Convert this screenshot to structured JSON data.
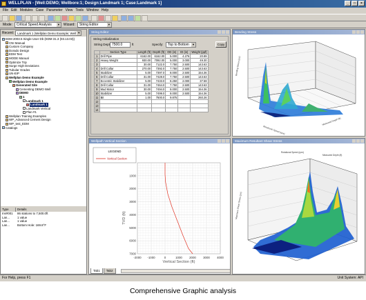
{
  "app": {
    "title": "WELLPLAN - [Well:DEMO; Wellbore:1; Design:Landmark 1; Case:Landmark 1]",
    "minimize": "_",
    "maximize": "□",
    "close": "×"
  },
  "menu": [
    "File",
    "Edit",
    "Modules",
    "Case",
    "Parameter",
    "View",
    "Tools",
    "Window",
    "Help"
  ],
  "modebar": {
    "mode_label": "Mode:",
    "mode_value": "Critical Speed Analysis",
    "wizard_label": "Wizard:",
    "wizard_value": "String Editor"
  },
  "left": {
    "recent_label": "Recent:",
    "recent_value": "Landmark 1 (Wellplan Demo Example; Well",
    "tree": [
      {
        "label": "EDM 2003.5 Single User Db (EDM 31.3 (03.13.03))",
        "level": 0,
        "icon": "db"
      },
      {
        "label": "CNI Manual",
        "level": 1,
        "icon": "co"
      },
      {
        "label": "Custom Company",
        "level": 1,
        "icon": "co"
      },
      {
        "label": "Dorado Design",
        "level": 1,
        "icon": "co"
      },
      {
        "label": "EDM Test",
        "level": 1,
        "icon": "co"
      },
      {
        "label": "MODE Manual",
        "level": 1,
        "icon": "co"
      },
      {
        "label": "Optimize Trip",
        "level": 1,
        "icon": "co"
      },
      {
        "label": "Surge High Deviations",
        "level": 1,
        "icon": "co"
      },
      {
        "label": "Tubular Grades",
        "level": 1,
        "icon": "co"
      },
      {
        "label": "UN-EIP",
        "level": 1,
        "icon": "co"
      },
      {
        "label": "Wellplan Demo Example",
        "level": 1,
        "icon": "co",
        "bold": true
      },
      {
        "label": "Wellplan Demo Example",
        "level": 2,
        "icon": "pr",
        "bold": true
      },
      {
        "label": "Generated Site",
        "level": 3,
        "icon": "si",
        "bold": true
      },
      {
        "label": "Cementing DEMO Well",
        "level": 4,
        "icon": "we"
      },
      {
        "label": "DEMO",
        "level": 4,
        "icon": "we",
        "bold": true
      },
      {
        "label": "1",
        "level": 5,
        "icon": "bo",
        "bold": true
      },
      {
        "label": "Landmark 1",
        "level": 6,
        "icon": "de",
        "bold": true
      },
      {
        "label": "Landmark 1",
        "level": 7,
        "icon": "ca",
        "bold": true,
        "selected": true
      },
      {
        "label": "Landmark Vertical",
        "level": 6,
        "icon": "de"
      },
      {
        "label": "Plan #1",
        "level": 6,
        "icon": "de"
      },
      {
        "label": "Wellplan Training Examples",
        "level": 1,
        "icon": "co"
      },
      {
        "label": "WP_Advanced Cement Design",
        "level": 1,
        "icon": "co"
      },
      {
        "label": "WP_test_EDM",
        "level": 1,
        "icon": "co"
      },
      {
        "label": "Catalogs",
        "level": 0,
        "icon": "db"
      }
    ],
    "details_header": [
      "Type",
      "Details"
    ],
    "details": [
      {
        "type": "Ins#001",
        "details": "86 stations to 7,500.0ft"
      },
      {
        "type": "Lan...",
        "details": "1 value"
      },
      {
        "type": "Lan...",
        "details": "1 value"
      },
      {
        "type": "Lan...",
        "details": "Bottom Hole: 169.8°F"
      }
    ]
  },
  "string_editor": {
    "title": "String Editor",
    "section": "String Initialization",
    "string_depth_label": "String Depth:",
    "string_depth_value": "7500.0",
    "string_depth_unit": "ft",
    "specify_label": "Specify:",
    "specify_value": "Top to Bottom",
    "copy_label": "Copy",
    "columns": [
      "",
      "Section Type",
      "Length (ft)",
      "Depth (ft)",
      "OD (in)",
      "ID (in)",
      "Weight (ppf)"
    ],
    "rows": [
      [
        "1",
        "Drill Pipe",
        "6162.00",
        "6162.00",
        "5.000",
        "4.276",
        "20.89"
      ],
      [
        "2",
        "Heavy Weight",
        "930.00",
        "7092.00",
        "5.000",
        "3.000",
        "49.30"
      ],
      [
        "3",
        "",
        "30.00",
        "7122.0",
        "7.750",
        "2.500",
        "143.63"
      ],
      [
        "4",
        "Drill Collar",
        "270.00",
        "7392.0",
        "7.750",
        "2.500",
        "143.63"
      ],
      [
        "5",
        "Stabilizer",
        "5.00",
        "7397.0",
        "8.000",
        "2.500",
        "154.36"
      ],
      [
        "6",
        "Drill Collar",
        "31.00",
        "7428.0",
        "7.750",
        "2.500",
        "143.63"
      ],
      [
        "7",
        "Eccentric Stabilizer",
        "5.00",
        "7433.0",
        "8.250",
        "2.000",
        "37.59"
      ],
      [
        "8",
        "Drill Collar",
        "31.00",
        "7464.0",
        "7.750",
        "2.500",
        "143.63"
      ],
      [
        "9",
        "Mud Motor",
        "30.00",
        "7494.0",
        "8.000",
        "2.500",
        "154.36"
      ],
      [
        "10",
        "Stabilizer",
        "5.00",
        "7499.0",
        "8.000",
        "2.500",
        "154.36"
      ],
      [
        "11",
        "Bit",
        "1.00",
        "7500.0",
        "9.875",
        "",
        "260.26"
      ],
      [
        "12",
        "",
        "",
        "",
        "",
        "",
        ""
      ],
      [
        "13",
        "",
        "",
        "",
        "",
        "",
        ""
      ],
      [
        "14",
        "",
        "",
        "",
        "",
        "",
        ""
      ]
    ]
  },
  "bending_panel": {
    "title": "Bending Stress"
  },
  "vertical_section": {
    "title": "Wellpath Vertical Section",
    "legend_title": "LEGEND",
    "legend_entry": "Vertical Section",
    "tabs": [
      "Tab1",
      "Tab2"
    ],
    "chart_data": {
      "type": "line",
      "xlabel": "Vertical Section (ft)",
      "ylabel": "TVD (ft)",
      "xlim": [
        -2000,
        4000
      ],
      "ylim": [
        7000,
        0
      ],
      "xticks": [
        -2000,
        -1000,
        0,
        1000,
        2000,
        3000,
        4000
      ],
      "yticks": [
        1000,
        2000,
        3000,
        4000,
        5000,
        6000,
        7000
      ],
      "grid": true,
      "series": [
        {
          "name": "Vertical Section",
          "color": "#e03020",
          "x": [
            0,
            0,
            40,
            200,
            500,
            900,
            1300,
            1700,
            2000
          ],
          "y": [
            0,
            900,
            1500,
            2400,
            3400,
            4500,
            5600,
            6600,
            7000
          ]
        }
      ]
    }
  },
  "normal_shear_panel": {
    "title": "Maximum Resultant Shear Stress"
  },
  "status": {
    "left": "For Help, press F1",
    "right": "Unit System: API"
  },
  "caption": "Comprehensive Graphic analysis",
  "colors": {
    "title_active": "#0a246a",
    "panel_title": "#7a96c2",
    "chrome": "#d4d0c8"
  }
}
